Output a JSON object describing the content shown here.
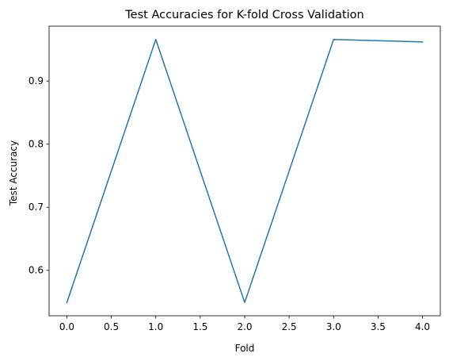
{
  "chart_data": {
    "type": "line",
    "title": "Test Accuracies for K-fold Cross Validation",
    "xlabel": "Fold",
    "ylabel": "Test Accuracy",
    "x": [
      0,
      1,
      2,
      3,
      4
    ],
    "series": [
      {
        "values": [
          0.549,
          0.966,
          0.549,
          0.966,
          0.962
        ],
        "color": "#1f77b4"
      }
    ],
    "xlim": [
      -0.2,
      4.2
    ],
    "ylim": [
      0.528,
      0.987
    ],
    "xticks": [
      0.0,
      0.5,
      1.0,
      1.5,
      2.0,
      2.5,
      3.0,
      3.5,
      4.0
    ],
    "xtick_labels": [
      "0.0",
      "0.5",
      "1.0",
      "1.5",
      "2.0",
      "2.5",
      "3.0",
      "3.5",
      "4.0"
    ],
    "yticks": [
      0.6,
      0.7,
      0.8,
      0.9
    ],
    "ytick_labels": [
      "0.6",
      "0.7",
      "0.8",
      "0.9"
    ],
    "grid": false,
    "legend": "none"
  }
}
